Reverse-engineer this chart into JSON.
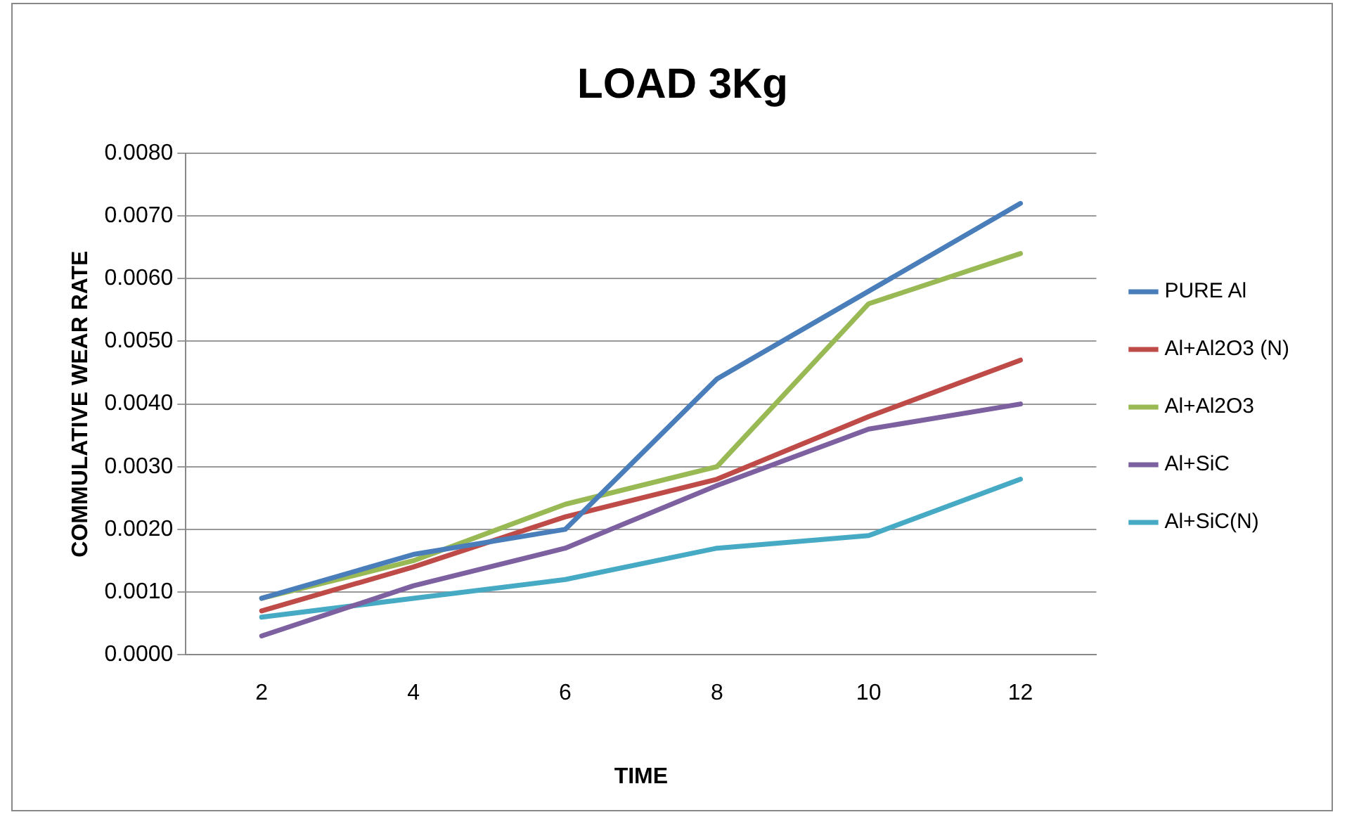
{
  "chart_data": {
    "type": "line",
    "title": "LOAD 3Kg",
    "xlabel": "TIME",
    "ylabel": "COMMULATIVE WEAR RATE",
    "categories": [
      "2",
      "4",
      "6",
      "8",
      "10",
      "12"
    ],
    "series": [
      {
        "name": "PURE Al",
        "color": "#4a7ebb",
        "values": [
          0.0009,
          0.0016,
          0.002,
          0.0044,
          0.0058,
          0.0072
        ]
      },
      {
        "name": "Al+Al2O3 (N)",
        "color": "#be4b48",
        "values": [
          0.0007,
          0.0014,
          0.0022,
          0.0028,
          0.0038,
          0.0047
        ]
      },
      {
        "name": "Al+Al2O3",
        "color": "#98b954",
        "values": [
          0.0009,
          0.0015,
          0.0024,
          0.003,
          0.0056,
          0.0064
        ]
      },
      {
        "name": "Al+SiC",
        "color": "#7d60a0",
        "values": [
          0.0003,
          0.0011,
          0.0017,
          0.0027,
          0.0036,
          0.004
        ]
      },
      {
        "name": "Al+SiC(N)",
        "color": "#46aac5",
        "values": [
          0.0006,
          0.0009,
          0.0012,
          0.0017,
          0.0019,
          0.0028
        ]
      }
    ],
    "ylim": [
      0,
      0.008
    ],
    "yticks": [
      {
        "value": 0,
        "label": "0.0000"
      },
      {
        "value": 0.001,
        "label": "0.0010"
      },
      {
        "value": 0.002,
        "label": "0.0020"
      },
      {
        "value": 0.003,
        "label": "0.0030"
      },
      {
        "value": 0.004,
        "label": "0.0040"
      },
      {
        "value": 0.005,
        "label": "0.0050"
      },
      {
        "value": 0.006,
        "label": "0.0060"
      },
      {
        "value": 0.007,
        "label": "0.0070"
      },
      {
        "value": 0.008,
        "label": "0.0080"
      }
    ],
    "grid": "y",
    "legend": "right",
    "marker": "none",
    "line_style": "solid"
  }
}
